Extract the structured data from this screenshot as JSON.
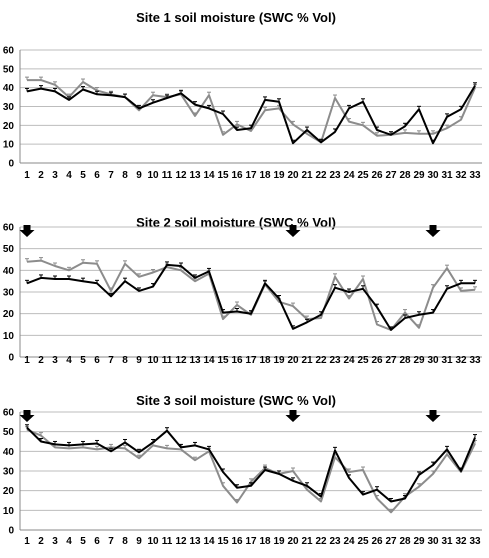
{
  "chart_data": [
    {
      "type": "line",
      "title": "Site 1 soil moisture (SWC % Vol)",
      "ylim": [
        0,
        60
      ],
      "yticks": [
        0,
        10,
        20,
        30,
        40,
        50,
        60
      ],
      "x": [
        1,
        2,
        3,
        4,
        5,
        6,
        7,
        8,
        9,
        10,
        11,
        12,
        13,
        14,
        15,
        16,
        17,
        18,
        19,
        20,
        21,
        22,
        23,
        24,
        25,
        26,
        27,
        28,
        29,
        30,
        31,
        32,
        33
      ],
      "grid": true,
      "arrows": [],
      "colors": {
        "black": "#000000",
        "gray": "#8c8c8c"
      },
      "series": [
        {
          "color": "black",
          "values": [
            38,
            39.5,
            38,
            33.5,
            39,
            36.5,
            36,
            35,
            29,
            32,
            34.5,
            37,
            31,
            29,
            26,
            17.5,
            18.5,
            33.5,
            32.5,
            10.5,
            17.5,
            11,
            16.5,
            29,
            32.5,
            17.5,
            15,
            19.5,
            28.5,
            10.5,
            24.5,
            28.5,
            41
          ]
        },
        {
          "color": "gray",
          "values": [
            44,
            44,
            41.5,
            35,
            43,
            38.5,
            36.5,
            35,
            28,
            36,
            35,
            36.5,
            25,
            36,
            15,
            20.5,
            17,
            28,
            29,
            20.5,
            15.5,
            11,
            34.5,
            22,
            20,
            14.5,
            15,
            16,
            15.5,
            15.5,
            18.5,
            23,
            40
          ]
        }
      ]
    },
    {
      "type": "line",
      "title": "Site 2 soil moisture (SWC % Vol)",
      "ylim": [
        0,
        60
      ],
      "yticks": [
        0,
        10,
        20,
        30,
        40,
        50,
        60
      ],
      "x": [
        1,
        2,
        3,
        4,
        5,
        6,
        7,
        8,
        9,
        10,
        11,
        12,
        13,
        14,
        15,
        16,
        17,
        18,
        19,
        20,
        21,
        22,
        23,
        24,
        25,
        26,
        27,
        28,
        29,
        30,
        31,
        32,
        33
      ],
      "grid": true,
      "arrows": [
        1,
        20,
        30
      ],
      "colors": {
        "black": "#000000",
        "gray": "#8c8c8c"
      },
      "series": [
        {
          "color": "black",
          "values": [
            34,
            36.5,
            36,
            36,
            35,
            34,
            28,
            35,
            30.5,
            32.5,
            42.5,
            42,
            36.5,
            39.5,
            20.5,
            21,
            20,
            34,
            27,
            13,
            16,
            19.5,
            32,
            30,
            31.5,
            23,
            12.5,
            18,
            19.5,
            20.5,
            31.5,
            34,
            34
          ]
        },
        {
          "color": "gray",
          "values": [
            44,
            44.5,
            42,
            40,
            43.5,
            43,
            30.5,
            43,
            37,
            39,
            41.5,
            40,
            35,
            38.5,
            17.5,
            24,
            19.5,
            33.5,
            25.5,
            23.5,
            17.5,
            18,
            37,
            27,
            36,
            15,
            12.5,
            20.5,
            13.5,
            32,
            41,
            30.5,
            31
          ]
        }
      ]
    },
    {
      "type": "line",
      "title": "Site 3 soil moisture (SWC % Vol)",
      "ylim": [
        0,
        60
      ],
      "yticks": [
        0,
        10,
        20,
        30,
        40,
        50,
        60
      ],
      "x": [
        1,
        2,
        3,
        4,
        5,
        6,
        7,
        8,
        9,
        10,
        11,
        12,
        13,
        14,
        15,
        16,
        17,
        18,
        19,
        20,
        21,
        22,
        23,
        24,
        25,
        26,
        27,
        28,
        29,
        30,
        31,
        32,
        33
      ],
      "grid": true,
      "arrows": [
        1,
        20,
        30
      ],
      "colors": {
        "black": "#000000",
        "gray": "#8c8c8c"
      },
      "series": [
        {
          "color": "black",
          "values": [
            52,
            45,
            43.5,
            43,
            43.5,
            44,
            40,
            44.5,
            39.5,
            44.5,
            50.5,
            42,
            43,
            41,
            29.5,
            21.5,
            22.5,
            30.5,
            28.5,
            25,
            22.5,
            17,
            40.5,
            26.5,
            18,
            20.5,
            14.5,
            16,
            28,
            33,
            41,
            30,
            47
          ]
        },
        {
          "color": "gray",
          "values": [
            51,
            48,
            42,
            41.5,
            42,
            41,
            42,
            41.5,
            36.5,
            43,
            41.5,
            41,
            35.5,
            40,
            22.5,
            14,
            24.5,
            31.5,
            28.5,
            30,
            20.5,
            14.5,
            37,
            29.5,
            30.5,
            16,
            9,
            17,
            22,
            28.5,
            38.5,
            29.5,
            44
          ]
        }
      ]
    }
  ]
}
